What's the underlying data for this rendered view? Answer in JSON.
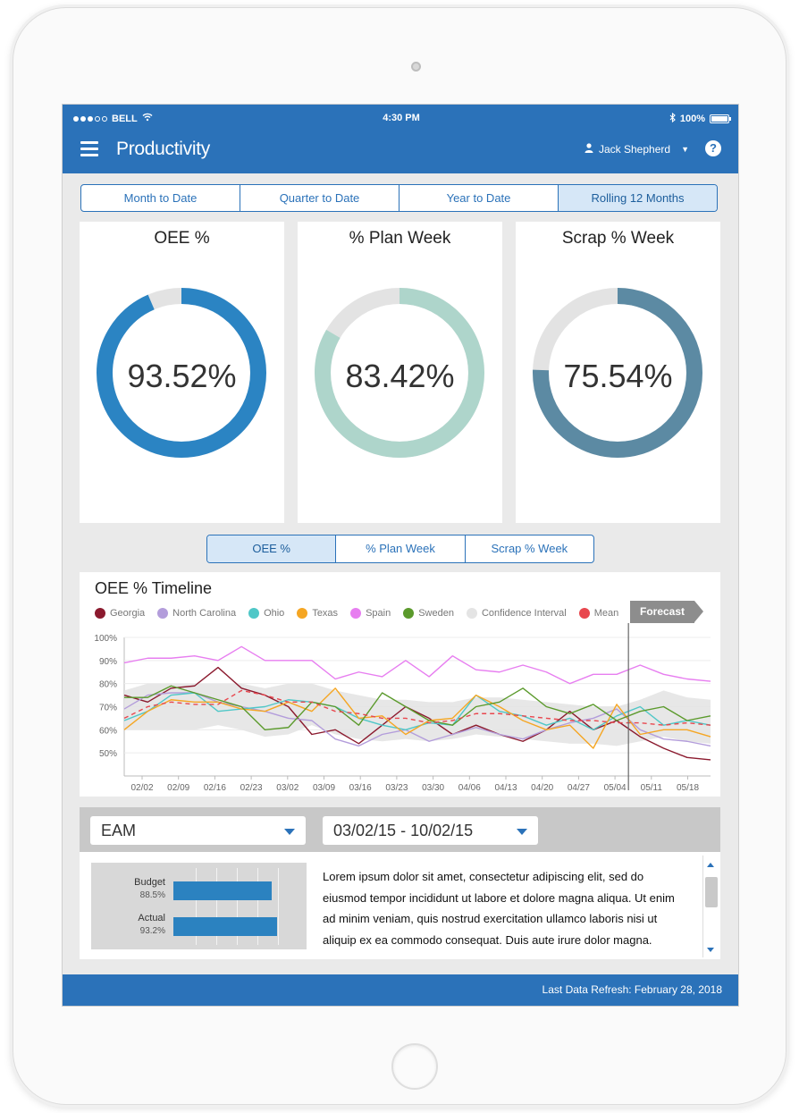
{
  "status_bar": {
    "carrier": "BELL",
    "time": "4:30 PM",
    "battery": "100%"
  },
  "header": {
    "title": "Productivity",
    "user": "Jack Shepherd",
    "help_label": "?"
  },
  "period_tabs": [
    {
      "label": "Month to Date",
      "active": false
    },
    {
      "label": "Quarter to Date",
      "active": false
    },
    {
      "label": "Year to Date",
      "active": false
    },
    {
      "label": "Rolling 12 Months",
      "active": true
    }
  ],
  "kpis": [
    {
      "title": "OEE %",
      "value": "93.52%",
      "percent": 93.52,
      "color": "#2b84c3"
    },
    {
      "title": "% Plan Week",
      "value": "83.42%",
      "percent": 83.42,
      "color": "#aed5cb"
    },
    {
      "title": "Scrap % Week",
      "value": "75.54%",
      "percent": 75.54,
      "color": "#5c8aa3"
    }
  ],
  "metric_tabs": [
    {
      "label": "OEE %",
      "active": true
    },
    {
      "label": "% Plan Week",
      "active": false
    },
    {
      "label": "Scrap % Week",
      "active": false
    }
  ],
  "timeline": {
    "title": "OEE % Timeline",
    "forecast_label": "Forecast",
    "legend": [
      {
        "name": "Georgia",
        "color": "#8b1a2e"
      },
      {
        "name": "North Carolina",
        "color": "#b39ddb"
      },
      {
        "name": "Ohio",
        "color": "#4fc7c7"
      },
      {
        "name": "Texas",
        "color": "#f5a623"
      },
      {
        "name": "Spain",
        "color": "#e77ef0"
      },
      {
        "name": "Sweden",
        "color": "#5b9a2c"
      },
      {
        "name": "Confidence Interval",
        "color": "#e4e4e4"
      },
      {
        "name": "Mean",
        "color": "#e8474e"
      }
    ]
  },
  "chart_data": {
    "type": "line",
    "title": "OEE % Timeline",
    "x_ticks": [
      "02/02",
      "02/09",
      "02/16",
      "02/23",
      "03/02",
      "03/09",
      "03/16",
      "03/23",
      "03/30",
      "04/06",
      "04/13",
      "04/20",
      "04/27",
      "05/04",
      "05/11",
      "05/18"
    ],
    "y_ticks": [
      "100%",
      "90%",
      "80%",
      "70%",
      "60%",
      "50%"
    ],
    "ylim": [
      40,
      100
    ],
    "forecast_start_index": 21.5,
    "x_count": 26,
    "series": [
      {
        "name": "Georgia",
        "color": "#8b1a2e",
        "values": [
          75,
          72,
          78,
          79,
          87,
          78,
          75,
          70,
          58,
          60,
          54,
          62,
          70,
          65,
          58,
          62,
          58,
          55,
          60,
          68,
          60,
          64,
          57,
          52,
          48,
          47
        ]
      },
      {
        "name": "North Carolina",
        "color": "#b39ddb",
        "values": [
          69,
          75,
          76,
          76,
          72,
          70,
          68,
          65,
          64,
          56,
          53,
          58,
          60,
          55,
          58,
          61,
          58,
          56,
          60,
          63,
          65,
          69,
          60,
          56,
          55,
          53
        ]
      },
      {
        "name": "Ohio",
        "color": "#4fc7c7",
        "values": [
          64,
          68,
          75,
          76,
          68,
          69,
          70,
          73,
          72,
          70,
          65,
          62,
          60,
          63,
          62,
          75,
          68,
          66,
          62,
          65,
          60,
          66,
          70,
          62,
          64,
          62
        ]
      },
      {
        "name": "Texas",
        "color": "#f5a623",
        "values": [
          60,
          68,
          73,
          72,
          72,
          69,
          68,
          72,
          68,
          78,
          65,
          66,
          58,
          64,
          65,
          75,
          70,
          64,
          60,
          62,
          52,
          71,
          58,
          60,
          60,
          57
        ]
      },
      {
        "name": "Spain",
        "color": "#e77ef0",
        "values": [
          89,
          91,
          91,
          92,
          90,
          96,
          90,
          90,
          90,
          82,
          85,
          83,
          90,
          83,
          92,
          86,
          85,
          88,
          85,
          80,
          84,
          84,
          88,
          84,
          82,
          81
        ]
      },
      {
        "name": "Sweden",
        "color": "#5b9a2c",
        "values": [
          74,
          74,
          79,
          76,
          73,
          70,
          60,
          61,
          72,
          70,
          62,
          76,
          70,
          64,
          62,
          70,
          72,
          78,
          70,
          67,
          71,
          64,
          68,
          70,
          64,
          66
        ]
      },
      {
        "name": "Mean",
        "color": "#e8474e",
        "dashed": true,
        "values": [
          65,
          70,
          72,
          71,
          71,
          77,
          75,
          72,
          72,
          68,
          67,
          65,
          65,
          63,
          64,
          67,
          67,
          66,
          65,
          64,
          64,
          63,
          63,
          62,
          63,
          62
        ]
      }
    ],
    "confidence_interval": {
      "name": "Confidence Interval",
      "upper": [
        77,
        80,
        80,
        80,
        80,
        80,
        78,
        80,
        80,
        77,
        75,
        73,
        73,
        72,
        72,
        74,
        74,
        73,
        72,
        71,
        70,
        70,
        73,
        77,
        74,
        73
      ],
      "lower": [
        60,
        60,
        60,
        60,
        62,
        60,
        57,
        58,
        62,
        58,
        56,
        55,
        56,
        55,
        56,
        58,
        57,
        56,
        55,
        54,
        54,
        53,
        55,
        57,
        55,
        54
      ]
    }
  },
  "filters": {
    "system": "EAM",
    "date_range": "03/02/15 - 10/02/15"
  },
  "bar_summary": [
    {
      "label": "Budget",
      "value_text": "88.5%",
      "value": 88.5
    },
    {
      "label": "Actual",
      "value_text": "93.2%",
      "value": 93.2
    }
  ],
  "description": "Lorem ipsum dolor sit amet, consectetur adipiscing elit, sed do eiusmod tempor incididunt ut labore et dolore magna aliqua. Ut enim ad minim veniam, quis nostrud exercitation ullamco laboris nisi ut aliquip ex ea commodo consequat. Duis aute irure dolor magna.",
  "footer": {
    "refresh_text": "Last Data Refresh: February 28, 2018"
  }
}
